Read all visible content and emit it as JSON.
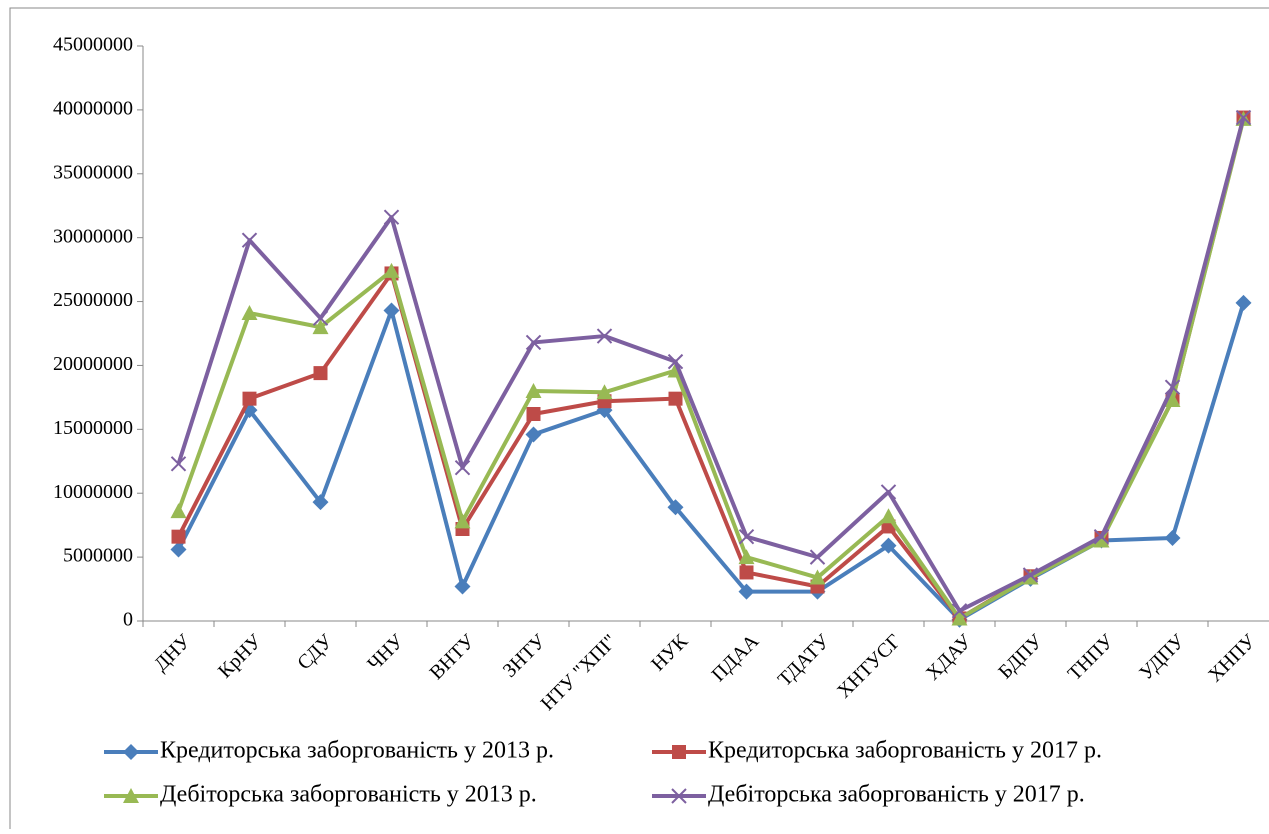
{
  "chart_data": {
    "type": "line",
    "categories": [
      "ДНУ",
      "КрНУ",
      "СДУ",
      "ЧНУ",
      "ВНТУ",
      "ЗНТУ",
      "НТУ \"ХПІ\"",
      "НУК",
      "ПДАА",
      "ТДАТУ",
      "ХНТУСГ",
      "ХДАУ",
      "БДПУ",
      "ТНПУ",
      "УДПУ",
      "ХНПУ"
    ],
    "series": [
      {
        "name": "Кредиторська заборгованість у 2013 р.",
        "color": "#4a7ebb",
        "marker": "diamond",
        "values": [
          5600000,
          16500000,
          9300000,
          24300000,
          2700000,
          14600000,
          16500000,
          8900000,
          2300000,
          2300000,
          5900000,
          100000,
          3300000,
          6300000,
          6500000,
          24900000
        ]
      },
      {
        "name": "Кредиторська заборгованість у 2017 р.",
        "color": "#be4b48",
        "marker": "square",
        "values": [
          6600000,
          17400000,
          19400000,
          27200000,
          7200000,
          16200000,
          17200000,
          17400000,
          3800000,
          2700000,
          7400000,
          200000,
          3500000,
          6500000,
          17300000,
          39400000
        ]
      },
      {
        "name": "Дебіторська заборгованість у 2013 р.",
        "color": "#98b954",
        "marker": "triangle",
        "values": [
          8600000,
          24100000,
          23000000,
          27400000,
          7800000,
          18000000,
          17900000,
          19600000,
          5000000,
          3400000,
          8200000,
          200000,
          3400000,
          6300000,
          17300000,
          39300000
        ]
      },
      {
        "name": "Дебіторська заборгованість у 2017 р.",
        "color": "#7d60a0",
        "marker": "x",
        "values": [
          12300000,
          29800000,
          23700000,
          31600000,
          12000000,
          21800000,
          22300000,
          20300000,
          6600000,
          5000000,
          10100000,
          800000,
          3600000,
          6600000,
          18300000,
          39400000
        ]
      }
    ],
    "ylim": [
      0,
      45000000
    ],
    "yticks": [
      0,
      5000000,
      10000000,
      15000000,
      20000000,
      25000000,
      30000000,
      35000000,
      40000000,
      45000000
    ],
    "grid": false,
    "legend": "bottom"
  }
}
